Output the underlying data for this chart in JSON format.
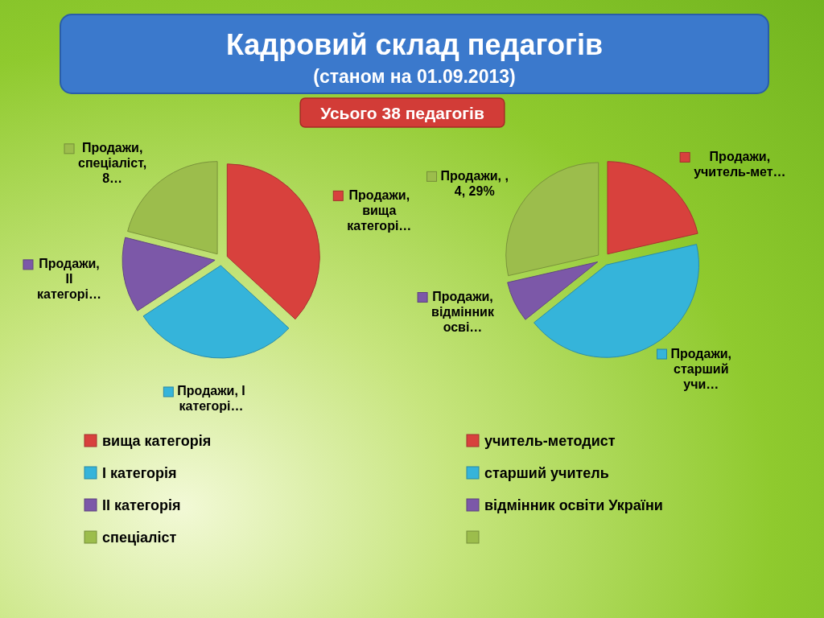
{
  "chart_data": [
    {
      "type": "pie",
      "title": "Кадровий склад педагогів",
      "subtitle": "(станом на 01.09.2013)",
      "annotations": [
        "Усього 38 педагогів"
      ],
      "categories": [
        "вища категорія",
        "І категорія",
        "ІІ категорія",
        "спеціаліст"
      ],
      "values": [
        14,
        11,
        5,
        8
      ],
      "colors": [
        "#d8413d",
        "#35b4da",
        "#7c58a8",
        "#9cbd4c"
      ],
      "value_labels": [
        "Продажи, вища категорі…",
        "Продажи, І категорі…",
        "Продажи, ІІ категорі…",
        "Продажи, спеціаліст, 8…"
      ],
      "legend": "bottom"
    },
    {
      "type": "pie",
      "categories": [
        "учитель-методист",
        "старший учитель",
        "відмінник освіти України",
        null
      ],
      "values": [
        3,
        6,
        1,
        4
      ],
      "colors": [
        "#d8413d",
        "#35b4da",
        "#7c58a8",
        "#9cbd4c"
      ],
      "value_labels": [
        "Продажи, учитель-мет…",
        "Продажи, старший учи…",
        "Продажи, відмінник осві…",
        "Продажи, , 4, 29%"
      ],
      "legend": "bottom"
    }
  ]
}
